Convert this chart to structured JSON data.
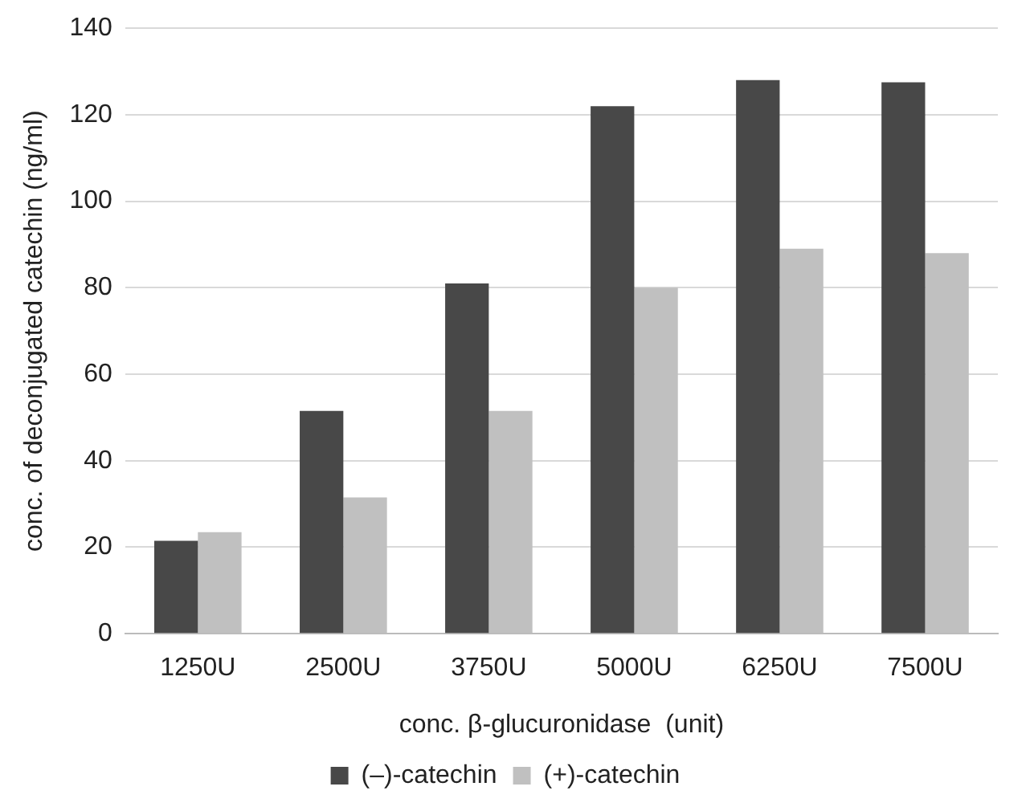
{
  "chart_data": {
    "type": "bar",
    "xlabel": "conc. β-glucuronidase  (unit)",
    "ylabel": "conc. of deconjugated catechin (ng/ml)",
    "categories": [
      "1250U",
      "2500U",
      "3750U",
      "5000U",
      "6250U",
      "7500U"
    ],
    "series": [
      {
        "name": "(–)-catechin",
        "color": "#484848",
        "values": [
          21.5,
          51.5,
          81,
          122,
          128,
          127.5
        ]
      },
      {
        "name": "(+)-catechin",
        "color": "#c0c0c0",
        "values": [
          23.5,
          31.5,
          51.5,
          80,
          89,
          88
        ]
      }
    ],
    "ylim": [
      0,
      140
    ],
    "yticks": [
      0,
      20,
      40,
      60,
      80,
      100,
      120,
      140
    ],
    "grid": "y",
    "legend": "bottom"
  }
}
